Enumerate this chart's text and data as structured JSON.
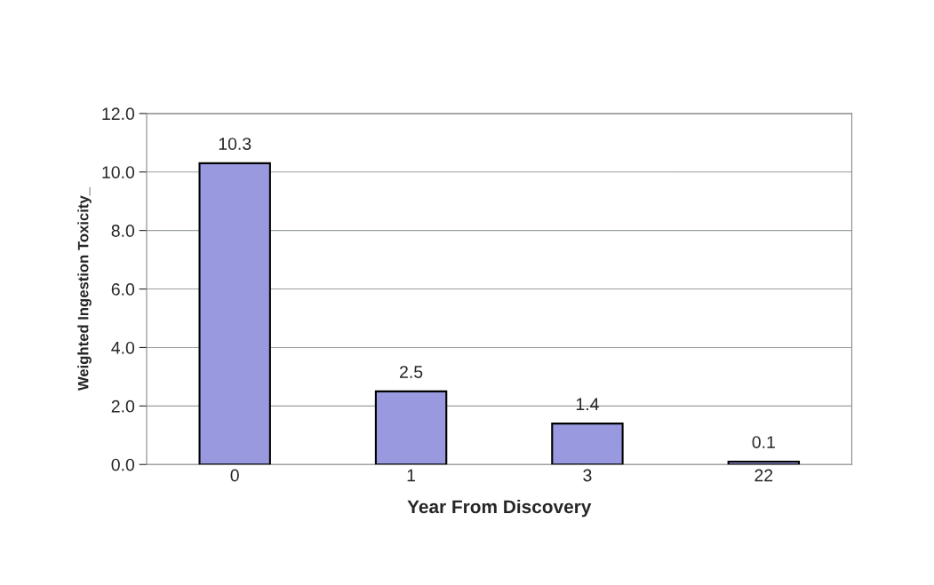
{
  "chart_data": {
    "type": "bar",
    "xlabel": "Year From Discovery",
    "ylabel": "Weighted Ingestion Toxicity_",
    "categories": [
      "0",
      "1",
      "3",
      "22"
    ],
    "values": [
      10.3,
      2.5,
      1.4,
      0.1
    ],
    "color": "#9999e0",
    "ylim": [
      0,
      12
    ],
    "yticks": [
      {
        "value": 0,
        "label": "0.0"
      },
      {
        "value": 2,
        "label": "2.0"
      },
      {
        "value": 4,
        "label": "4.0"
      },
      {
        "value": 6,
        "label": "6.0"
      },
      {
        "value": 8,
        "label": "8.0"
      },
      {
        "value": 10,
        "label": "10.0"
      },
      {
        "value": 12,
        "label": "12.0"
      }
    ],
    "grid": "y",
    "data_labels": true
  }
}
